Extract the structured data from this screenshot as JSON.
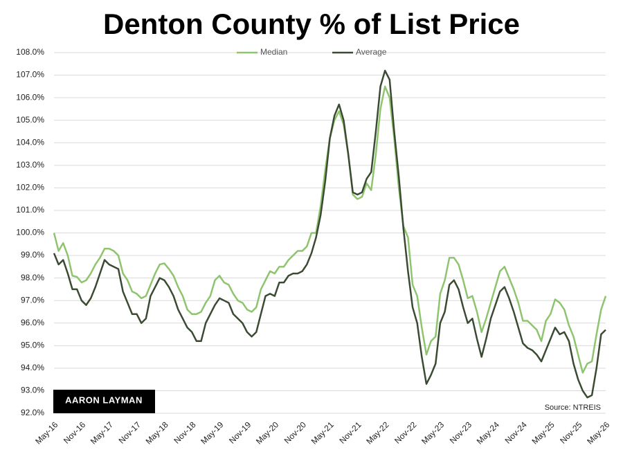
{
  "chart_data": {
    "type": "line",
    "title": "Denton County % of List Price",
    "categories": [
      "May-16",
      null,
      null,
      null,
      null,
      null,
      "Nov-16",
      null,
      null,
      null,
      null,
      null,
      "May-17",
      null,
      null,
      null,
      null,
      null,
      "Nov-17",
      null,
      null,
      null,
      null,
      null,
      "May-18",
      null,
      null,
      null,
      null,
      null,
      "Nov-18",
      null,
      null,
      null,
      null,
      null,
      "May-19",
      null,
      null,
      null,
      null,
      null,
      "Nov-19",
      null,
      null,
      null,
      null,
      null,
      "May-20",
      null,
      null,
      null,
      null,
      null,
      "Nov-20",
      null,
      null,
      null,
      null,
      null,
      "May-21",
      null,
      null,
      null,
      null,
      null,
      "Nov-21",
      null,
      null,
      null,
      null,
      null,
      "May-22",
      null,
      null,
      null,
      null,
      null,
      "Nov-22",
      null,
      null,
      null,
      null,
      null,
      "May-23",
      null,
      null,
      null,
      null,
      null,
      "Nov-23",
      null,
      null,
      null,
      null,
      null,
      "May-24",
      null,
      null,
      null,
      null,
      null,
      "Nov-24",
      null,
      null,
      null,
      null,
      null,
      "May-25",
      null,
      null,
      null,
      null,
      null,
      "Nov-25",
      null,
      null,
      null,
      null,
      null,
      "May-26"
    ],
    "series": [
      {
        "name": "Median",
        "color": "#8fc46f",
        "values": [
          100.0,
          99.2,
          99.55,
          99.0,
          98.1,
          98.05,
          97.8,
          97.9,
          98.2,
          98.6,
          98.9,
          99.3,
          99.3,
          99.2,
          99.0,
          98.2,
          97.9,
          97.4,
          97.3,
          97.1,
          97.2,
          97.7,
          98.2,
          98.6,
          98.65,
          98.4,
          98.1,
          97.6,
          97.2,
          96.6,
          96.4,
          96.4,
          96.5,
          96.9,
          97.2,
          97.9,
          98.1,
          97.8,
          97.7,
          97.3,
          97.0,
          96.9,
          96.6,
          96.5,
          96.7,
          97.5,
          97.9,
          98.3,
          98.2,
          98.5,
          98.5,
          98.8,
          99.0,
          99.2,
          99.2,
          99.4,
          100.0,
          100.0,
          101.2,
          102.8,
          104.2,
          105.0,
          105.4,
          104.8,
          103.5,
          101.7,
          101.5,
          101.6,
          102.2,
          101.9,
          103.5,
          105.5,
          106.5,
          106.0,
          104.2,
          102.0,
          100.3,
          99.8,
          97.7,
          97.2,
          95.8,
          94.6,
          95.2,
          95.4,
          97.3,
          97.9,
          98.9,
          98.9,
          98.6,
          97.9,
          97.1,
          97.2,
          96.5,
          95.6,
          96.2,
          96.9,
          97.6,
          98.3,
          98.5,
          98.0,
          97.5,
          96.9,
          96.1,
          96.1,
          95.9,
          95.7,
          95.2,
          96.1,
          96.4,
          97.05,
          96.9,
          96.6,
          95.9,
          95.4,
          94.6,
          93.8,
          94.2,
          94.3,
          95.5,
          96.6,
          97.2
        ]
      },
      {
        "name": "Average",
        "color": "#3b4a33",
        "values": [
          99.1,
          98.6,
          98.8,
          98.2,
          97.5,
          97.5,
          97.0,
          96.8,
          97.1,
          97.6,
          98.2,
          98.8,
          98.6,
          98.5,
          98.4,
          97.4,
          96.9,
          96.4,
          96.4,
          96.0,
          96.2,
          97.2,
          97.6,
          98.0,
          97.9,
          97.6,
          97.2,
          96.6,
          96.2,
          95.8,
          95.6,
          95.2,
          95.2,
          96.0,
          96.4,
          96.8,
          97.1,
          97.0,
          96.9,
          96.4,
          96.2,
          96.0,
          95.6,
          95.4,
          95.6,
          96.4,
          97.2,
          97.3,
          97.2,
          97.8,
          97.8,
          98.1,
          98.2,
          98.2,
          98.3,
          98.6,
          99.1,
          99.8,
          100.8,
          102.3,
          104.2,
          105.2,
          105.7,
          105.0,
          103.5,
          101.8,
          101.7,
          101.8,
          102.4,
          102.7,
          104.5,
          106.5,
          107.2,
          106.8,
          104.5,
          102.5,
          100.2,
          98.3,
          96.7,
          96.0,
          94.5,
          93.3,
          93.7,
          94.2,
          96.0,
          96.5,
          97.7,
          97.9,
          97.5,
          96.7,
          96.0,
          96.2,
          95.3,
          94.5,
          95.3,
          96.2,
          96.8,
          97.4,
          97.6,
          97.1,
          96.5,
          95.8,
          95.1,
          94.9,
          94.8,
          94.6,
          94.3,
          94.8,
          95.3,
          95.8,
          95.5,
          95.6,
          95.2,
          94.2,
          93.5,
          93.0,
          92.7,
          92.8,
          94.0,
          95.5,
          95.7
        ]
      }
    ],
    "ylim": [
      92,
      108
    ],
    "yticks": [
      {
        "value": 92,
        "label": "92.0%"
      },
      {
        "value": 93,
        "label": "93.0%"
      },
      {
        "value": 94,
        "label": "94.0%"
      },
      {
        "value": 95,
        "label": "95.0%"
      },
      {
        "value": 96,
        "label": "96.0%"
      },
      {
        "value": 97,
        "label": "97.0%"
      },
      {
        "value": 98,
        "label": "98.0%"
      },
      {
        "value": 99,
        "label": "99.0%"
      },
      {
        "value": 100,
        "label": "100.0%"
      },
      {
        "value": 101,
        "label": "101.0%"
      },
      {
        "value": 102,
        "label": "102.0%"
      },
      {
        "value": 103,
        "label": "103.0%"
      },
      {
        "value": 104,
        "label": "104.0%"
      },
      {
        "value": 105,
        "label": "105.0%"
      },
      {
        "value": 106,
        "label": "106.0%"
      },
      {
        "value": 107,
        "label": "107.0%"
      },
      {
        "value": 108,
        "label": "108.0%"
      }
    ],
    "grid": true,
    "legend": "top",
    "logo": "AARON LAYMAN",
    "source": "Source: NTREIS"
  }
}
